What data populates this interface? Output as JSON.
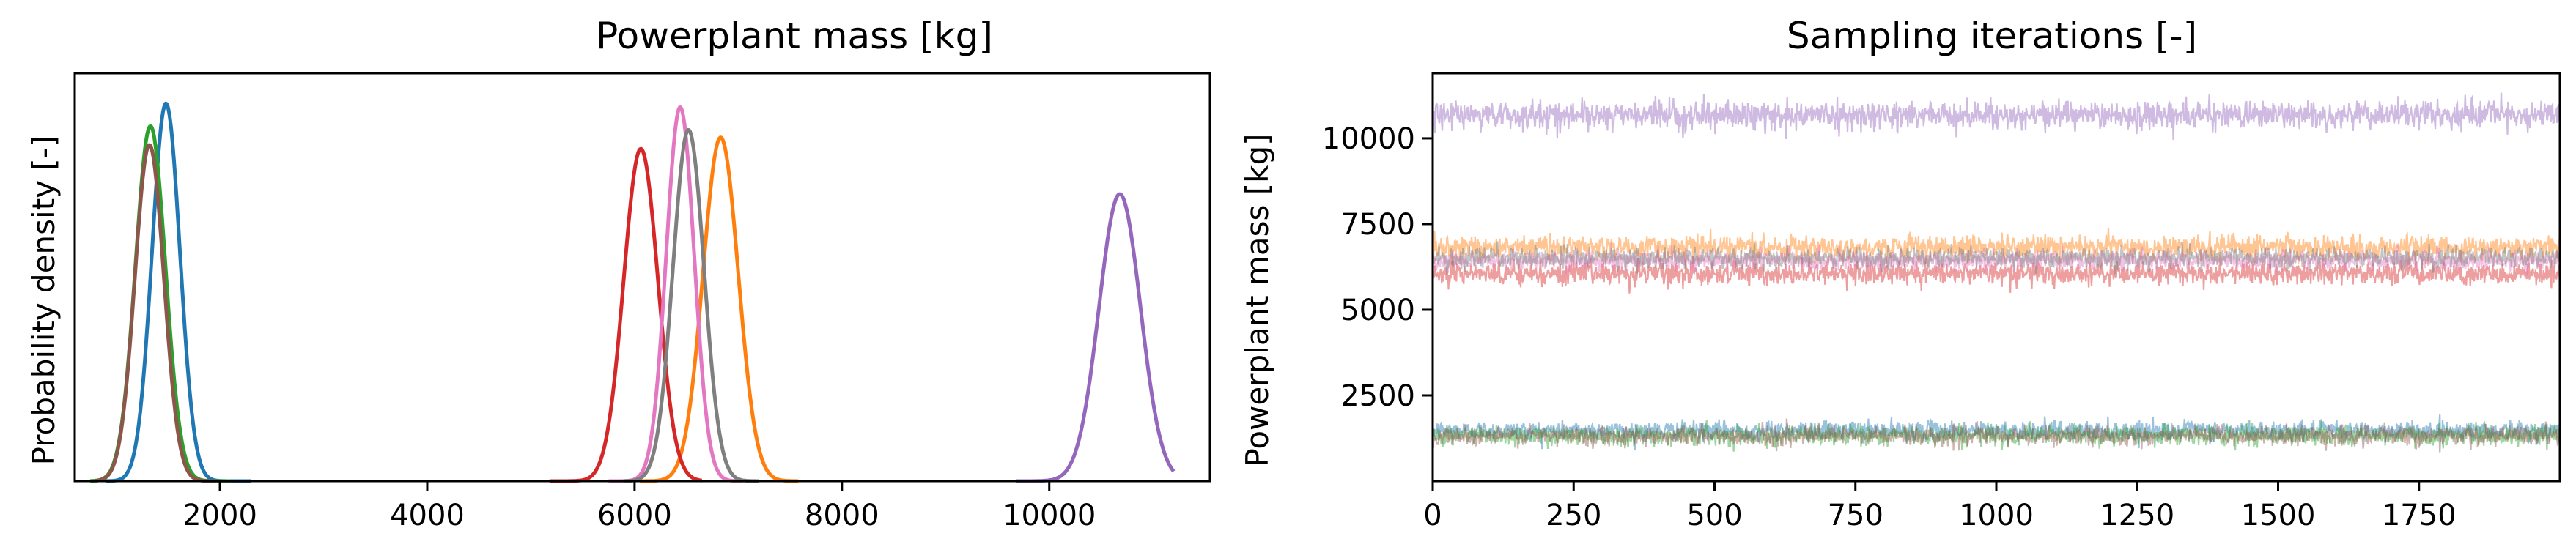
{
  "chart_data": [
    {
      "type": "line",
      "title": "Powerplant mass [kg]",
      "xlabel": "",
      "ylabel": "Probability density [-]",
      "xlim": [
        600,
        11550
      ],
      "ylim": [
        0,
        1.08
      ],
      "xticks": [
        2000,
        4000,
        6000,
        8000,
        10000
      ],
      "xtick_labels": [
        "2000",
        "4000",
        "6000",
        "8000",
        "10000"
      ],
      "yticks": [],
      "grid": false,
      "legend": "none",
      "series": [
        {
          "name": "series-1 (blue)",
          "color": "#1f77b4",
          "mean": 1480,
          "sd": 135,
          "peak": 1.0,
          "x_min": 900,
          "x_max": 2300
        },
        {
          "name": "series-2 (orange)",
          "color": "#ff7f0e",
          "mean": 6830,
          "sd": 170,
          "peak": 0.91,
          "x_min": 6050,
          "x_max": 7580
        },
        {
          "name": "series-3 (green)",
          "color": "#2ca02c",
          "mean": 1330,
          "sd": 145,
          "peak": 0.94,
          "x_min": 750,
          "x_max": 2100
        },
        {
          "name": "series-4 (red)",
          "color": "#d62728",
          "mean": 6060,
          "sd": 165,
          "peak": 0.88,
          "x_min": 5180,
          "x_max": 6650
        },
        {
          "name": "series-5 (purple)",
          "color": "#9467bd",
          "mean": 10680,
          "sd": 200,
          "peak": 0.76,
          "x_min": 9680,
          "x_max": 11200
        },
        {
          "name": "series-6 (brown)",
          "color": "#8c564b",
          "mean": 1320,
          "sd": 140,
          "peak": 0.89,
          "x_min": 800,
          "x_max": 1950
        },
        {
          "name": "series-7 (pink)",
          "color": "#e377c2",
          "mean": 6440,
          "sd": 135,
          "peak": 0.99,
          "x_min": 5750,
          "x_max": 7050
        },
        {
          "name": "series-8 (gray)",
          "color": "#7f7f7f",
          "mean": 6520,
          "sd": 150,
          "peak": 0.93,
          "x_min": 5900,
          "x_max": 7200
        }
      ]
    },
    {
      "type": "line",
      "title": "Sampling iterations [-]",
      "xlabel": "",
      "ylabel": "Powerplant mass [kg]",
      "xlim": [
        0,
        2000
      ],
      "ylim": [
        0,
        11900
      ],
      "xticks": [
        0,
        250,
        500,
        750,
        1000,
        1250,
        1500,
        1750
      ],
      "xtick_labels": [
        "0",
        "250",
        "500",
        "750",
        "1000",
        "1250",
        "1500",
        "1750"
      ],
      "yticks": [
        2500,
        5000,
        7500,
        10000
      ],
      "ytick_labels": [
        "2500",
        "5000",
        "7500",
        "10000"
      ],
      "grid": false,
      "legend": "none",
      "n_samples": 2000,
      "series": [
        {
          "name": "trace-1 (blue)",
          "color": "#1f77b4",
          "mean": 1480,
          "sd": 135
        },
        {
          "name": "trace-2 (green)",
          "color": "#2ca02c",
          "mean": 1330,
          "sd": 145
        },
        {
          "name": "trace-3 (brown)",
          "color": "#8c564b",
          "mean": 1320,
          "sd": 140
        },
        {
          "name": "trace-4 (purple)",
          "color": "#9467bd",
          "mean": 10680,
          "sd": 200
        },
        {
          "name": "trace-5 (orange)",
          "color": "#ff7f0e",
          "mean": 6830,
          "sd": 170
        },
        {
          "name": "trace-6 (red)",
          "color": "#d62728",
          "mean": 6060,
          "sd": 165
        },
        {
          "name": "trace-7 (pink)",
          "color": "#e377c2",
          "mean": 6440,
          "sd": 135
        },
        {
          "name": "trace-8 (gray)",
          "color": "#7f7f7f",
          "mean": 6520,
          "sd": 150
        }
      ]
    }
  ]
}
